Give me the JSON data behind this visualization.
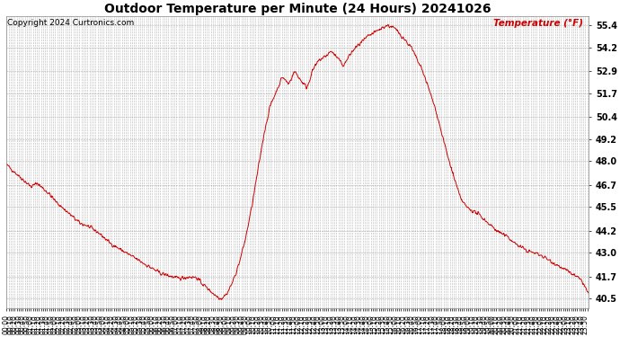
{
  "title": "Outdoor Temperature per Minute (24 Hours) 20241026",
  "copyright": "Copyright 2024 Curtronics.com",
  "legend_label": "Temperature (°F)",
  "line_color": "#cc0000",
  "legend_color": "#cc0000",
  "copyright_color": "#000000",
  "title_color": "#000000",
  "background_color": "#ffffff",
  "grid_color": "#aaaaaa",
  "yticks": [
    40.5,
    41.7,
    43.0,
    44.2,
    45.5,
    46.7,
    48.0,
    49.2,
    50.4,
    51.7,
    52.9,
    54.2,
    55.4
  ],
  "ylim": [
    40.0,
    55.9
  ],
  "temp_profile": [
    47.8,
    47.5,
    47.2,
    46.9,
    46.6,
    46.8,
    46.5,
    46.2,
    45.8,
    45.5,
    45.2,
    44.9,
    44.6,
    44.5,
    44.3,
    44.1,
    43.8,
    43.5,
    43.3,
    43.1,
    42.9,
    42.7,
    42.5,
    42.3,
    42.1,
    41.9,
    41.8,
    41.7,
    41.6,
    41.65,
    41.7,
    41.65,
    41.3,
    41.0,
    40.7,
    40.5,
    40.8,
    41.5,
    42.5,
    43.8,
    45.5,
    47.5,
    49.5,
    51.0,
    51.8,
    52.6,
    52.2,
    52.9,
    52.4,
    52.0,
    53.0,
    53.5,
    53.7,
    54.0,
    53.6,
    53.2,
    53.8,
    54.2,
    54.5,
    54.8,
    55.0,
    55.2,
    55.4,
    55.3,
    55.0,
    54.6,
    54.2,
    53.5,
    52.8,
    51.8,
    50.8,
    49.5,
    48.2,
    47.1,
    46.0,
    45.5,
    45.3,
    45.1,
    44.8,
    44.5,
    44.2,
    44.0,
    43.8,
    43.5,
    43.3,
    43.1,
    43.0,
    42.9,
    42.7,
    42.5,
    42.3,
    42.1,
    41.9,
    41.7,
    41.4,
    40.7
  ],
  "xlabel_every_n_minutes": 10,
  "xtick_every_n_minutes": 5,
  "total_minutes": 1440,
  "figwidth": 6.9,
  "figheight": 3.75,
  "dpi": 100
}
